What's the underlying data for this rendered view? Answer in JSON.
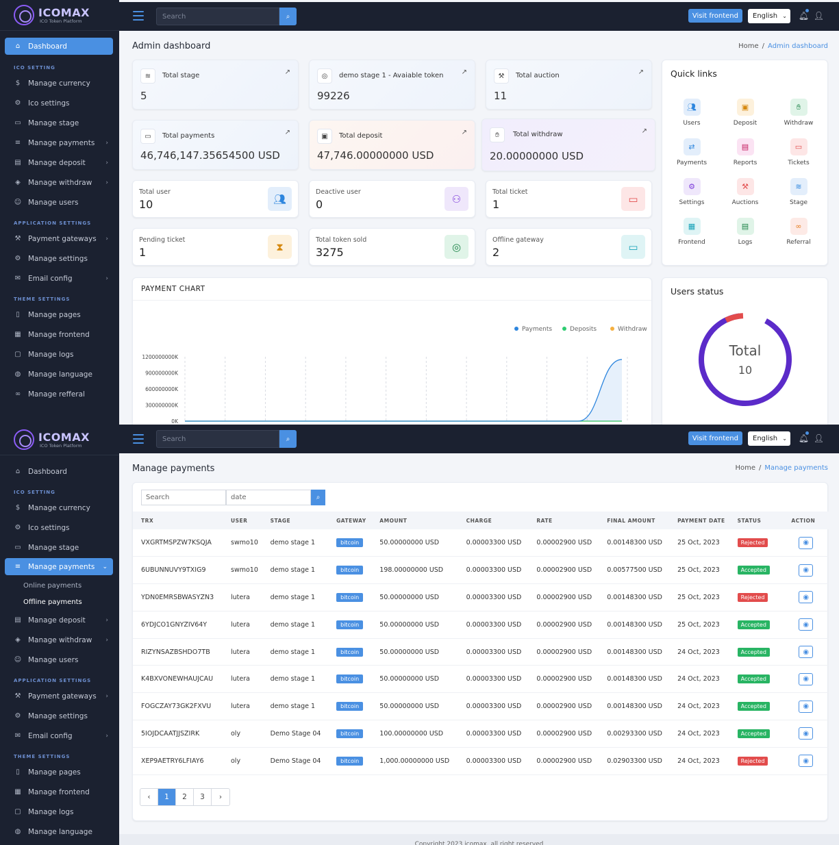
{
  "app": {
    "name": "ICOMAX",
    "subtitle": "ICO Token Platform"
  },
  "topbar": {
    "search_placeholder": "Search",
    "visit_label": "Visit frontend",
    "language": "English"
  },
  "sidebar1": {
    "dashboard": "Dashboard",
    "ico_head": "ICO SETTING",
    "ico": [
      "Manage currency",
      "Ico settings",
      "Manage stage",
      "Manage payments",
      "Manage deposit",
      "Manage withdraw",
      "Manage users"
    ],
    "app_head": "APPLICATION SETTINGS",
    "app": [
      "Payment gateways",
      "Manage settings",
      "Email config"
    ],
    "theme_head": "THEME SETTINGS",
    "theme": [
      "Manage pages",
      "Manage frontend",
      "Manage logs",
      "Manage language",
      "Manage refferal"
    ]
  },
  "sidebar2": {
    "dashboard": "Dashboard",
    "ico_head": "ICO SETTING",
    "ico_top": [
      "Manage currency",
      "Ico settings",
      "Manage stage"
    ],
    "payments": "Manage payments",
    "sub": [
      "Online payments",
      "Offline payments"
    ],
    "ico_bottom": [
      "Manage deposit",
      "Manage withdraw",
      "Manage users"
    ],
    "app_head": "APPLICATION SETTINGS",
    "app": [
      "Payment gateways",
      "Manage settings",
      "Email config"
    ],
    "theme_head": "THEME SETTINGS",
    "theme": [
      "Manage pages",
      "Manage frontend",
      "Manage logs",
      "Manage language"
    ]
  },
  "dashboard": {
    "title": "Admin dashboard",
    "crumb_home": "Home",
    "crumb_current": "Admin dashboard",
    "stats": [
      {
        "label": "Total stage",
        "value": "5"
      },
      {
        "label": "demo stage 1 - Avaiable token",
        "value": "99226"
      },
      {
        "label": "Total auction",
        "value": "11"
      },
      {
        "label": "Total payments",
        "value": "46,746,147.35654500 USD"
      },
      {
        "label": "Total deposit",
        "value": "47,746.00000000 USD"
      },
      {
        "label": "Total withdraw",
        "value": "20.00000000 USD"
      }
    ],
    "minis": [
      {
        "label": "Total user",
        "value": "10"
      },
      {
        "label": "Deactive user",
        "value": "0"
      },
      {
        "label": "Total ticket",
        "value": "1"
      },
      {
        "label": "Pending ticket",
        "value": "1"
      },
      {
        "label": "Total token sold",
        "value": "3275"
      },
      {
        "label": "Offline gateway",
        "value": "2"
      }
    ],
    "quick_links_title": "Quick links",
    "quick_links": [
      "Users",
      "Deposit",
      "Withdraw",
      "Payments",
      "Reports",
      "Tickets",
      "Settings",
      "Auctions",
      "Stage",
      "Frontend",
      "Logs",
      "Referral"
    ],
    "users_status_title": "Users status",
    "donut_label": "Total",
    "donut_value": "10"
  },
  "chart_data": {
    "type": "area",
    "title": "PAYMENT CHART",
    "legend": [
      "Payments",
      "Deposits",
      "Withdraw"
    ],
    "legend_colors": [
      "#2e86de",
      "#2ecc71",
      "#f5b041"
    ],
    "y_ticks": [
      "0K",
      "300000000K",
      "600000000K",
      "900000000K",
      "1200000000K"
    ],
    "ylim": [
      0,
      1200000000
    ],
    "series": [
      {
        "name": "Payments",
        "values": [
          0,
          0,
          0,
          0,
          0,
          0,
          0,
          0,
          0,
          0,
          1150000000
        ]
      },
      {
        "name": "Deposits",
        "values": [
          0,
          0,
          0,
          0,
          0,
          0,
          0,
          0,
          0,
          0,
          0
        ]
      },
      {
        "name": "Withdraw",
        "values": [
          0,
          0,
          0,
          0,
          0,
          0,
          0,
          0,
          0,
          0,
          0
        ]
      }
    ]
  },
  "payments": {
    "title": "Manage payments",
    "crumb_home": "Home",
    "crumb_current": "Manage payments",
    "search_placeholder": "Search",
    "date_placeholder": "date",
    "columns": [
      "TRX",
      "USER",
      "STAGE",
      "GATEWAY",
      "AMOUNT",
      "CHARGE",
      "RATE",
      "FINAL AMOUNT",
      "PAYMENT DATE",
      "STATUS",
      "ACTION"
    ],
    "rows": [
      [
        "VXGRTMSPZW7KSQJA",
        "swmo10",
        "demo stage 1",
        "bitcoin",
        "50.00000000 USD",
        "0.00003300 USD",
        "0.00002900 USD",
        "0.00148300 USD",
        "25 Oct, 2023",
        "Rejected"
      ],
      [
        "6UBUNNUVY9TXIG9",
        "swmo10",
        "demo stage 1",
        "bitcoin",
        "198.00000000 USD",
        "0.00003300 USD",
        "0.00002900 USD",
        "0.00577500 USD",
        "25 Oct, 2023",
        "Accepted"
      ],
      [
        "YDN0EMRSBWASYZN3",
        "lutera",
        "demo stage 1",
        "bitcoin",
        "50.00000000 USD",
        "0.00003300 USD",
        "0.00002900 USD",
        "0.00148300 USD",
        "25 Oct, 2023",
        "Rejected"
      ],
      [
        "6YDJCO1GNYZIV64Y",
        "lutera",
        "demo stage 1",
        "bitcoin",
        "50.00000000 USD",
        "0.00003300 USD",
        "0.00002900 USD",
        "0.00148300 USD",
        "25 Oct, 2023",
        "Accepted"
      ],
      [
        "RIZYNSAZBSHDO7TB",
        "lutera",
        "demo stage 1",
        "bitcoin",
        "50.00000000 USD",
        "0.00003300 USD",
        "0.00002900 USD",
        "0.00148300 USD",
        "24 Oct, 2023",
        "Accepted"
      ],
      [
        "K4BXVONEWHAUJCAU",
        "lutera",
        "demo stage 1",
        "bitcoin",
        "50.00000000 USD",
        "0.00003300 USD",
        "0.00002900 USD",
        "0.00148300 USD",
        "24 Oct, 2023",
        "Accepted"
      ],
      [
        "FOGCZAY73GK2FXVU",
        "lutera",
        "demo stage 1",
        "bitcoin",
        "50.00000000 USD",
        "0.00003300 USD",
        "0.00002900 USD",
        "0.00148300 USD",
        "24 Oct, 2023",
        "Accepted"
      ],
      [
        "5IOJDCAATJJSZIRK",
        "oly",
        "Demo Stage 04",
        "bitcoin",
        "100.00000000 USD",
        "0.00003300 USD",
        "0.00002900 USD",
        "0.00293300 USD",
        "24 Oct, 2023",
        "Accepted"
      ],
      [
        "XEP9AETRY6LFIAY6",
        "oly",
        "Demo Stage 04",
        "bitcoin",
        "1,000.00000000 USD",
        "0.00003300 USD",
        "0.00002900 USD",
        "0.02903300 USD",
        "24 Oct, 2023",
        "Rejected"
      ]
    ],
    "pages": [
      "‹",
      "1",
      "2",
      "3",
      "›"
    ],
    "current_page": "1"
  },
  "footer": "Copyright 2023 icomax. all right reserved"
}
